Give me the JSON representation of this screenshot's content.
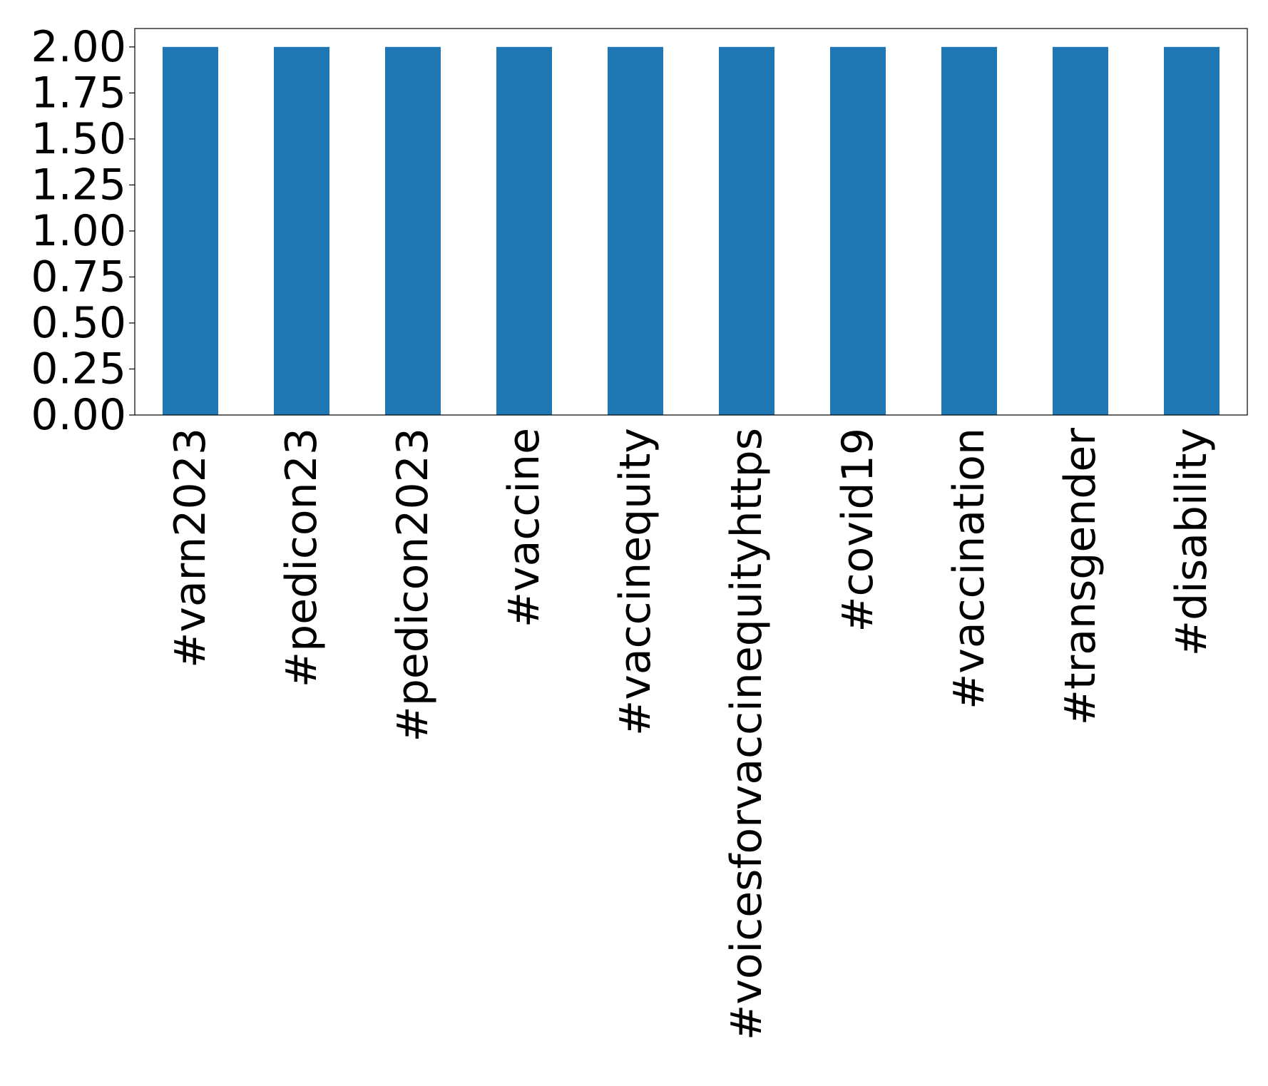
{
  "chart_data": {
    "type": "bar",
    "categories": [
      "#varn2023",
      "#pedicon23",
      "#pedicon2023",
      "#vaccine",
      "#vaccinequity",
      "#voicesforvaccinequityhttps",
      "#covid19",
      "#vaccination",
      "#transgender",
      "#disability"
    ],
    "values": [
      2,
      2,
      2,
      2,
      2,
      2,
      2,
      2,
      2,
      2
    ],
    "color": "#1f77b4",
    "ylim": [
      0,
      2.1
    ],
    "yticks": [
      {
        "value": 0,
        "label": "0.00"
      },
      {
        "value": 0.25,
        "label": "0.25"
      },
      {
        "value": 0.5,
        "label": "0.50"
      },
      {
        "value": 0.75,
        "label": "0.75"
      },
      {
        "value": 1,
        "label": "1.00"
      },
      {
        "value": 1.25,
        "label": "1.25"
      },
      {
        "value": 1.5,
        "label": "1.50"
      },
      {
        "value": 1.75,
        "label": "1.75"
      },
      {
        "value": 2,
        "label": "2.00"
      }
    ],
    "grid": false
  }
}
